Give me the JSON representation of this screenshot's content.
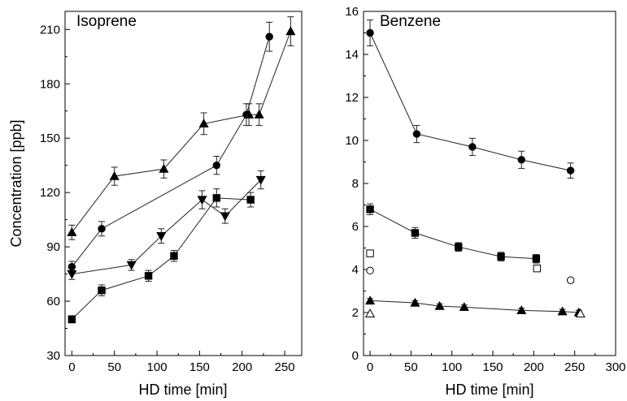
{
  "chart_data": [
    {
      "type": "line",
      "title": "Isoprene",
      "xlabel": "HD time [min]",
      "ylabel": "Concentration [ppb]",
      "xlim": [
        -8,
        270
      ],
      "ylim": [
        30,
        220
      ],
      "xticks": [
        0,
        50,
        100,
        150,
        200,
        250
      ],
      "yticks": [
        30,
        60,
        90,
        120,
        150,
        180,
        210
      ],
      "series": [
        {
          "marker": "triangle-up",
          "filled": true,
          "points": [
            [
              0,
              98,
              4
            ],
            [
              50,
              129,
              5
            ],
            [
              108,
              133,
              5
            ],
            [
              155,
              158,
              6
            ],
            [
              208,
              163,
              6
            ],
            [
              220,
              163,
              6
            ],
            [
              257,
              209,
              8
            ]
          ]
        },
        {
          "marker": "circle",
          "filled": true,
          "points": [
            [
              0,
              79,
              3
            ],
            [
              35,
              100,
              4
            ],
            [
              170,
              135,
              5
            ],
            [
              205,
              163,
              6
            ],
            [
              232,
              206,
              8
            ]
          ]
        },
        {
          "marker": "triangle-down",
          "filled": true,
          "points": [
            [
              0,
              75,
              3
            ],
            [
              70,
              80,
              3
            ],
            [
              105,
              96,
              4
            ],
            [
              153,
              116,
              5
            ],
            [
              180,
              107,
              4
            ],
            [
              222,
              127,
              5
            ]
          ]
        },
        {
          "marker": "square",
          "filled": true,
          "points": [
            [
              0,
              50,
              2
            ],
            [
              35,
              66,
              3
            ],
            [
              90,
              74,
              3
            ],
            [
              120,
              85,
              3
            ],
            [
              170,
              117,
              5
            ],
            [
              210,
              116,
              4
            ]
          ]
        }
      ]
    },
    {
      "type": "line",
      "title": "Benzene",
      "xlabel": "HD time [min]",
      "ylabel": "",
      "xlim": [
        -8,
        300
      ],
      "ylim": [
        0,
        16
      ],
      "xticks": [
        0,
        50,
        100,
        150,
        200,
        250,
        300
      ],
      "yticks": [
        0,
        2,
        4,
        6,
        8,
        10,
        12,
        14,
        16
      ],
      "series": [
        {
          "marker": "circle",
          "filled": true,
          "points": [
            [
              0,
              15.0,
              0.6
            ],
            [
              57,
              10.3,
              0.4
            ],
            [
              125,
              9.7,
              0.4
            ],
            [
              185,
              9.1,
              0.4
            ],
            [
              245,
              8.6,
              0.35
            ]
          ]
        },
        {
          "marker": "square",
          "filled": true,
          "points": [
            [
              0,
              6.8,
              0.25
            ],
            [
              55,
              5.7,
              0.25
            ],
            [
              108,
              5.05,
              0.2
            ],
            [
              160,
              4.6,
              0.2
            ],
            [
              203,
              4.5,
              0.2
            ]
          ]
        },
        {
          "marker": "triangle-up",
          "filled": true,
          "points": [
            [
              0,
              2.55,
              0.1
            ],
            [
              55,
              2.45,
              0.1
            ],
            [
              85,
              2.3,
              0.1
            ],
            [
              115,
              2.25,
              0.1
            ],
            [
              185,
              2.1,
              0.1
            ],
            [
              235,
              2.05,
              0.1
            ],
            [
              255,
              2.0,
              0.1
            ]
          ]
        },
        {
          "marker": "square",
          "filled": false,
          "connected": false,
          "points": [
            [
              0,
              4.75
            ],
            [
              204,
              4.05
            ]
          ]
        },
        {
          "marker": "circle",
          "filled": false,
          "connected": false,
          "points": [
            [
              0,
              3.95
            ],
            [
              245,
              3.5
            ]
          ]
        },
        {
          "marker": "triangle-up",
          "filled": false,
          "connected": false,
          "points": [
            [
              0,
              1.95
            ],
            [
              257,
              1.95
            ]
          ]
        }
      ]
    }
  ]
}
